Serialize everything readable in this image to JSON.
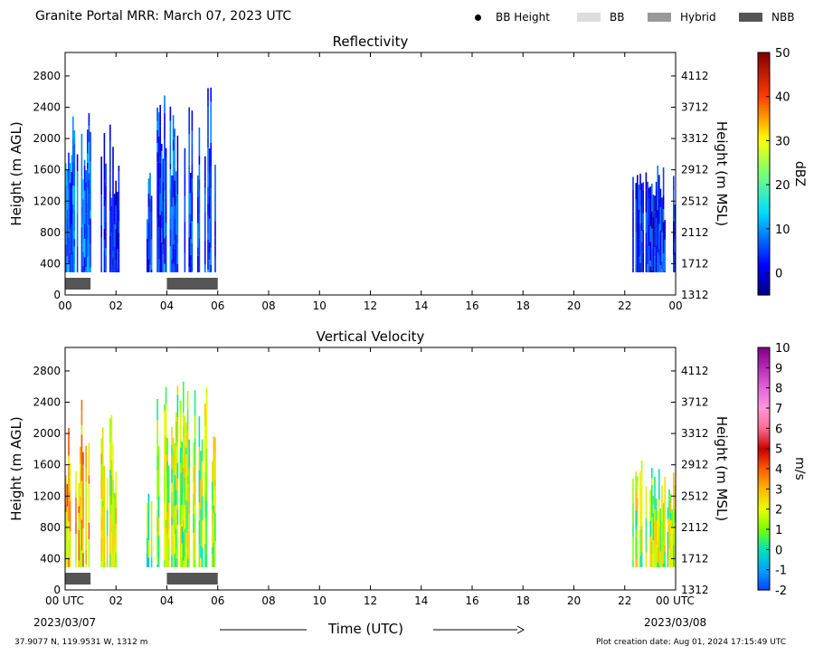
{
  "header": {
    "title": "Granite Portal MRR:  March 07, 2023 UTC",
    "location": "37.9077 N, 119.9531 W, 1312 m",
    "creation_date": "Plot creation date: Aug 01, 2024 17:15:49 UTC",
    "xlabel": "Time (UTC)",
    "date_start": "2023/03/07",
    "date_end": "2023/03/08"
  },
  "legend": [
    {
      "label": "BB Height",
      "marker": "dot",
      "color": "#000000"
    },
    {
      "label": "BB",
      "marker": "rect",
      "color": "#dddddd"
    },
    {
      "label": "Hybrid",
      "marker": "rect",
      "color": "#999999"
    },
    {
      "label": "NBB",
      "marker": "rect",
      "color": "#555555"
    }
  ],
  "chart_data": [
    {
      "type": "heatmap",
      "title": "Reflectivity",
      "xlabel": "",
      "ylabel": "Height (m AGL)",
      "ylabel_right": "Height (m MSL)",
      "xlim": [
        0,
        24
      ],
      "ylim": [
        0,
        3100
      ],
      "x_ticks": [
        "00",
        "02",
        "04",
        "06",
        "08",
        "10",
        "12",
        "14",
        "16",
        "18",
        "20",
        "22",
        "00"
      ],
      "y_ticks": [
        0,
        400,
        800,
        1200,
        1600,
        2000,
        2400,
        2800
      ],
      "y_ticks_right": [
        1312,
        1712,
        2112,
        2512,
        2912,
        3312,
        3712,
        4112
      ],
      "colorbar": {
        "label": "dBZ",
        "ticks": [
          "0",
          "10",
          "20",
          "30",
          "40",
          "50"
        ],
        "range": [
          -5,
          50
        ]
      },
      "precip_periods": [
        {
          "start": 0.0,
          "end": 1.0,
          "top": 2450,
          "value": 7
        },
        {
          "start": 1.4,
          "end": 2.1,
          "top": 2250,
          "value": 2
        },
        {
          "start": 3.2,
          "end": 3.4,
          "top": 1650,
          "value": 4
        },
        {
          "start": 3.6,
          "end": 5.9,
          "top": 2750,
          "value": 5
        },
        {
          "start": 22.3,
          "end": 24.0,
          "top": 1700,
          "value": 3
        }
      ],
      "classification": [
        {
          "start": 0.0,
          "end": 1.0,
          "class": "NBB"
        },
        {
          "start": 4.0,
          "end": 6.0,
          "class": "NBB"
        }
      ]
    },
    {
      "type": "heatmap",
      "title": "Vertical Velocity",
      "xlabel": "Time (UTC)",
      "ylabel": "Height (m AGL)",
      "ylabel_right": "Height (m MSL)",
      "xlim": [
        0,
        24
      ],
      "ylim": [
        0,
        3100
      ],
      "x_ticks": [
        "00 UTC",
        "02",
        "04",
        "06",
        "08",
        "10",
        "12",
        "14",
        "16",
        "18",
        "20",
        "22",
        "00 UTC"
      ],
      "y_ticks": [
        0,
        400,
        800,
        1200,
        1600,
        2000,
        2400,
        2800
      ],
      "y_ticks_right": [
        1312,
        1712,
        2112,
        2512,
        2912,
        3312,
        3712,
        4112
      ],
      "colorbar": {
        "label": "m/s",
        "ticks": [
          "-2",
          "-1",
          "0",
          "1",
          "2",
          "3",
          "4",
          "5",
          "6",
          "7",
          "8",
          "9",
          "10"
        ],
        "range": [
          -2,
          10
        ]
      },
      "precip_periods": [
        {
          "start": 0.0,
          "end": 1.0,
          "top": 2450,
          "value": 2.8
        },
        {
          "start": 1.4,
          "end": 2.1,
          "top": 2250,
          "value": 1.8
        },
        {
          "start": 3.2,
          "end": 3.4,
          "top": 1650,
          "value": 0.5
        },
        {
          "start": 3.6,
          "end": 5.9,
          "top": 2750,
          "value": 1.5
        },
        {
          "start": 22.3,
          "end": 24.0,
          "top": 1700,
          "value": 1.5
        }
      ],
      "classification": [
        {
          "start": 0.0,
          "end": 1.0,
          "class": "NBB"
        },
        {
          "start": 4.0,
          "end": 6.0,
          "class": "NBB"
        }
      ]
    }
  ]
}
